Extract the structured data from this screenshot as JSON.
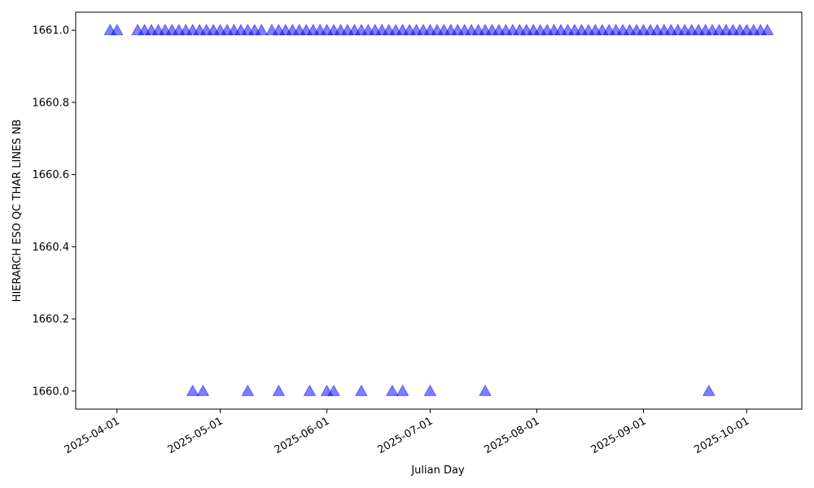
{
  "chart_data": {
    "type": "scatter",
    "xlabel": "Julian Day",
    "ylabel": "HIERARCH ESO QC THAR LINES NB",
    "xlim": [
      "2025-03-20",
      "2025-10-17"
    ],
    "xticks": [
      "2025-04-01",
      "2025-05-01",
      "2025-06-01",
      "2025-07-01",
      "2025-08-01",
      "2025-09-01",
      "2025-10-01"
    ],
    "ylim": [
      1659.95,
      1661.05
    ],
    "yticks": [
      {
        "value": 1660,
        "label": "1660.0"
      },
      {
        "value": 1660.2,
        "label": "1660.2"
      },
      {
        "value": 1660.4,
        "label": "1660.4"
      },
      {
        "value": 1660.6,
        "label": "1660.6"
      },
      {
        "value": 1660.8,
        "label": "1660.8"
      },
      {
        "value": 1661,
        "label": "1661.0"
      }
    ],
    "grid": false,
    "series": [
      {
        "color": "#0000ff",
        "alpha": 0.5,
        "marker": "triangle",
        "x": [
          "2025-03-30",
          "2025-04-01",
          "2025-04-07",
          "2025-04-09",
          "2025-04-11",
          "2025-04-13",
          "2025-04-15",
          "2025-04-17",
          "2025-04-19",
          "2025-04-21",
          "2025-04-23",
          "2025-04-25",
          "2025-04-27",
          "2025-04-29",
          "2025-05-01",
          "2025-05-03",
          "2025-05-05",
          "2025-05-07",
          "2025-05-09",
          "2025-05-11",
          "2025-05-13",
          "2025-05-16",
          "2025-05-18",
          "2025-05-20",
          "2025-05-22",
          "2025-05-24",
          "2025-05-26",
          "2025-05-28",
          "2025-05-30",
          "2025-06-01",
          "2025-06-03",
          "2025-06-05",
          "2025-06-07",
          "2025-06-09",
          "2025-06-11",
          "2025-06-13",
          "2025-06-15",
          "2025-06-17",
          "2025-06-19",
          "2025-06-21",
          "2025-06-23",
          "2025-06-25",
          "2025-06-27",
          "2025-06-29",
          "2025-07-01",
          "2025-07-03",
          "2025-07-05",
          "2025-07-07",
          "2025-07-09",
          "2025-07-11",
          "2025-07-13",
          "2025-07-15",
          "2025-07-17",
          "2025-07-19",
          "2025-07-21",
          "2025-07-23",
          "2025-07-25",
          "2025-07-27",
          "2025-07-29",
          "2025-07-31",
          "2025-08-02",
          "2025-08-04",
          "2025-08-06",
          "2025-08-08",
          "2025-08-10",
          "2025-08-12",
          "2025-08-14",
          "2025-08-16",
          "2025-08-18",
          "2025-08-20",
          "2025-08-22",
          "2025-08-24",
          "2025-08-26",
          "2025-08-28",
          "2025-08-30",
          "2025-09-01",
          "2025-09-03",
          "2025-09-05",
          "2025-09-07",
          "2025-09-09",
          "2025-09-11",
          "2025-09-13",
          "2025-09-15",
          "2025-09-17",
          "2025-09-19",
          "2025-09-21",
          "2025-09-23",
          "2025-09-25",
          "2025-09-27",
          "2025-09-29",
          "2025-10-01",
          "2025-10-03",
          "2025-10-05",
          "2025-10-07",
          "2025-04-23",
          "2025-04-26",
          "2025-05-09",
          "2025-05-18",
          "2025-05-27",
          "2025-06-01",
          "2025-06-03",
          "2025-06-11",
          "2025-06-20",
          "2025-06-23",
          "2025-07-01",
          "2025-07-17",
          "2025-09-20"
        ],
        "values": [
          1661,
          1661,
          1661,
          1661,
          1661,
          1661,
          1661,
          1661,
          1661,
          1661,
          1661,
          1661,
          1661,
          1661,
          1661,
          1661,
          1661,
          1661,
          1661,
          1661,
          1661,
          1661,
          1661,
          1661,
          1661,
          1661,
          1661,
          1661,
          1661,
          1661,
          1661,
          1661,
          1661,
          1661,
          1661,
          1661,
          1661,
          1661,
          1661,
          1661,
          1661,
          1661,
          1661,
          1661,
          1661,
          1661,
          1661,
          1661,
          1661,
          1661,
          1661,
          1661,
          1661,
          1661,
          1661,
          1661,
          1661,
          1661,
          1661,
          1661,
          1661,
          1661,
          1661,
          1661,
          1661,
          1661,
          1661,
          1661,
          1661,
          1661,
          1661,
          1661,
          1661,
          1661,
          1661,
          1661,
          1661,
          1661,
          1661,
          1661,
          1661,
          1661,
          1661,
          1661,
          1661,
          1661,
          1661,
          1661,
          1661,
          1661,
          1661,
          1661,
          1661,
          1661,
          1660,
          1660,
          1660,
          1660,
          1660,
          1660,
          1660,
          1660,
          1660,
          1660,
          1660,
          1660,
          1660
        ]
      }
    ]
  }
}
